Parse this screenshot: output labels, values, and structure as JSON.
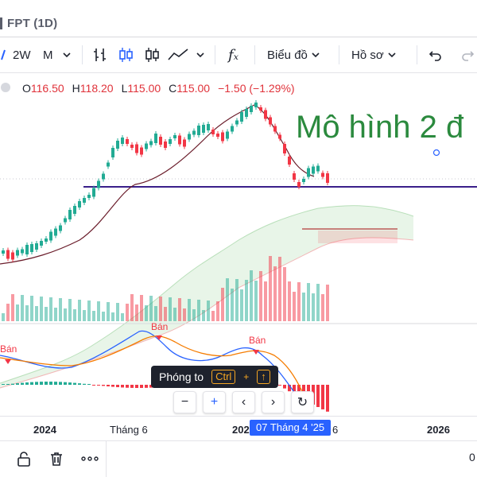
{
  "window": {
    "title": "FPT (1D)"
  },
  "toolbar": {
    "interval": "2W",
    "interval_menu": "M",
    "indicator_label": "fₓ",
    "chart_label": "Biểu đồ",
    "profile_label": "Hồ sơ"
  },
  "legend": {
    "open_key": "O",
    "open": "116.50",
    "high_key": "H",
    "high": "118.20",
    "low_key": "L",
    "low": "115.00",
    "close_key": "C",
    "close": "115.00",
    "change": "−1.50 (−1.29%)"
  },
  "annotation": {
    "text": "Mô hình 2 đ"
  },
  "signals": {
    "sell_1": "Bán",
    "sell_2": "Bán",
    "sell_3": "Bán"
  },
  "zoom_tooltip": {
    "label": "Phóng to",
    "key1": "Ctrl",
    "plus": "+",
    "key2": "↑"
  },
  "nav": {
    "zoom_out": "−",
    "zoom_in": "+",
    "left": "‹",
    "right": "›",
    "reset": "↻"
  },
  "time_axis": {
    "labels": [
      "2024",
      "Tháng 6",
      "202",
      "6",
      "2026",
      "0"
    ],
    "crosshair": "07 Tháng 4 '25"
  },
  "colors": {
    "up": "#22ab94",
    "down": "#f23645",
    "accent": "#2962ff",
    "annotation": "#2b8a3e",
    "support_line": "#3a1f8a"
  }
}
